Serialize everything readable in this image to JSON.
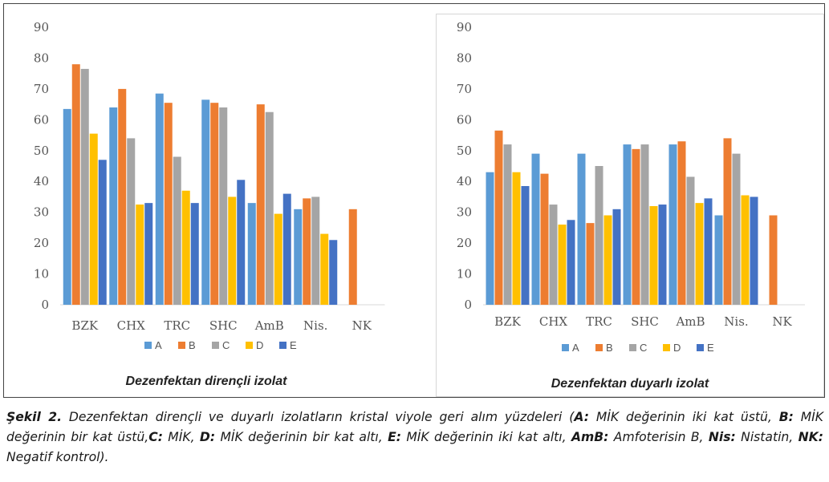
{
  "colors": {
    "A": "#5b9bd5",
    "B": "#ed7d31",
    "C": "#a5a5a5",
    "D": "#ffc000",
    "E": "#4472c4"
  },
  "chart_data": [
    {
      "type": "bar",
      "title": "Dezenfektan dirençli izolat",
      "categories": [
        "BZK",
        "CHX",
        "TRC",
        "SHC",
        "AmB",
        "Nis.",
        "NK"
      ],
      "ylim": [
        0,
        90
      ],
      "yticks": [
        0,
        10,
        20,
        30,
        40,
        50,
        60,
        70,
        80,
        90
      ],
      "grid": false,
      "legend": "bottom",
      "series": [
        {
          "name": "A",
          "values": [
            63.5,
            64,
            68.5,
            66.5,
            33,
            31,
            null
          ]
        },
        {
          "name": "B",
          "values": [
            78,
            70,
            65.5,
            65.5,
            65,
            34.5,
            31
          ]
        },
        {
          "name": "C",
          "values": [
            76.5,
            54,
            48,
            64,
            62.5,
            35,
            null
          ]
        },
        {
          "name": "D",
          "values": [
            55.5,
            32.5,
            37,
            35,
            29.5,
            23,
            null
          ]
        },
        {
          "name": "E",
          "values": [
            47,
            33,
            33,
            40.5,
            36,
            21,
            null
          ]
        }
      ]
    },
    {
      "type": "bar",
      "title": "Dezenfektan duyarlı izolat",
      "categories": [
        "BZK",
        "CHX",
        "TRC",
        "SHC",
        "AmB",
        "Nis.",
        "NK"
      ],
      "ylim": [
        0,
        90
      ],
      "yticks": [
        0,
        10,
        20,
        30,
        40,
        50,
        60,
        70,
        80,
        90
      ],
      "grid": false,
      "legend": "bottom",
      "series": [
        {
          "name": "A",
          "values": [
            43,
            49,
            49,
            52,
            52,
            29,
            null
          ]
        },
        {
          "name": "B",
          "values": [
            56.5,
            42.5,
            26.5,
            50.5,
            53,
            54,
            29
          ]
        },
        {
          "name": "C",
          "values": [
            52,
            32.5,
            45,
            52,
            41.5,
            49,
            null
          ]
        },
        {
          "name": "D",
          "values": [
            43,
            26,
            29,
            32,
            33,
            35.5,
            null
          ]
        },
        {
          "name": "E",
          "values": [
            38.5,
            27.5,
            31,
            32.5,
            34.5,
            35,
            null
          ]
        }
      ]
    }
  ],
  "caption": {
    "s1": "Şekil 2.",
    "s2": " Dezenfektan dirençli ve duyarlı izolatların kristal viyole geri alım yüzdeleri (",
    "s3": "A:",
    "s4": " MİK değerinin iki kat üstü, ",
    "s5": "B:",
    "s6": " MİK değerinin bir kat üstü,",
    "s7": "C:",
    "s8": " MİK, ",
    "s9": "D:",
    "s10": " MİK değerinin bir kat altı, ",
    "s11": "E:",
    "s12": " MİK değerinin iki kat altı, ",
    "s13": "AmB:",
    "s14": " Amfoterisin B, ",
    "s15": "Nis:",
    "s16": " Nistatin, ",
    "s17": "NK:",
    "s18": " Negatif kontrol)."
  }
}
